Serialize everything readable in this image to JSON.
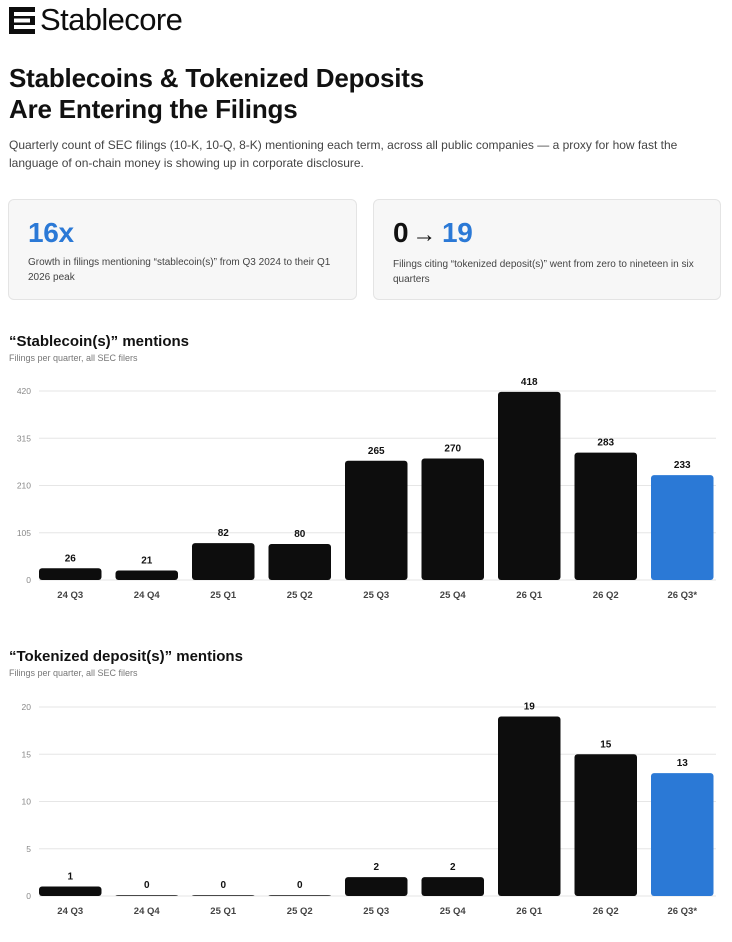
{
  "brand": {
    "name": "Stablecore"
  },
  "header": {
    "title_line1": "Stablecoins & Tokenized Deposits",
    "title_line2": "Are Entering the Filings",
    "subtitle": "Quarterly count of SEC filings (10-K, 10-Q, 8-K) mentioning each term, across all public companies — a proxy for how fast the language of on-chain money is showing up in corporate disclosure."
  },
  "stats": [
    {
      "value": "16x",
      "description": "Growth in filings mentioning “stablecoin(s)” from Q3 2024 to their Q1 2026 peak"
    },
    {
      "value_from": "0",
      "arrow": "→",
      "value_to": "19",
      "description": "Filings citing “tokenized deposit(s)” went from zero to nineteen in six quarters"
    }
  ],
  "colors": {
    "bar_actual": "#0d0d0d",
    "bar_projected": "#2b79d6",
    "accent": "#2b79d6",
    "grid": "#e6e6e6"
  },
  "chart_data": [
    {
      "type": "bar",
      "title": "“Stablecoin(s)” mentions",
      "subtitle": "Filings per quarter, all SEC filers",
      "categories": [
        "24 Q3",
        "24 Q4",
        "25 Q1",
        "25 Q2",
        "25 Q3",
        "25 Q4",
        "26 Q1",
        "26 Q2",
        "26 Q3*"
      ],
      "values": [
        26,
        21,
        82,
        80,
        265,
        270,
        418,
        283,
        233
      ],
      "highlighted": [
        false,
        false,
        false,
        false,
        false,
        false,
        false,
        false,
        true
      ],
      "yticks": [
        0,
        105,
        210,
        315,
        420
      ],
      "ylim": [
        0,
        420
      ],
      "grid": true
    },
    {
      "type": "bar",
      "title": "“Tokenized deposit(s)” mentions",
      "subtitle": "Filings per quarter, all SEC filers",
      "categories": [
        "24 Q3",
        "24 Q4",
        "25 Q1",
        "25 Q2",
        "25 Q3",
        "25 Q4",
        "26 Q1",
        "26 Q2",
        "26 Q3*"
      ],
      "values": [
        1,
        0,
        0,
        0,
        2,
        2,
        19,
        15,
        13
      ],
      "highlighted": [
        false,
        false,
        false,
        false,
        false,
        false,
        false,
        false,
        true
      ],
      "yticks": [
        0,
        5,
        10,
        15,
        20
      ],
      "ylim": [
        0,
        20
      ],
      "grid": true
    }
  ]
}
